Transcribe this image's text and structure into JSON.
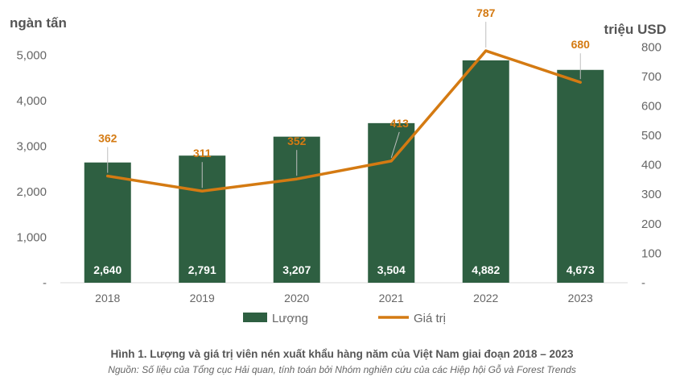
{
  "chart_data": {
    "type": "bar+line",
    "title": "Hình 1. Lượng và giá trị viên nén xuất khẩu hàng năm của Việt Nam giai đoạn 2018 – 2023",
    "source": "Nguồn: Số liệu của Tổng cục Hải quan, tính toán bởi Nhóm nghiên cứu của các Hiệp hội Gỗ và Forest Trends",
    "categories": [
      "2018",
      "2019",
      "2020",
      "2021",
      "2022",
      "2023"
    ],
    "y_left": {
      "label": "ngàn tấn",
      "range": [
        0,
        5500
      ],
      "ticks": [
        {
          "value": 0,
          "label": "-"
        },
        {
          "value": 1000,
          "label": "1,000"
        },
        {
          "value": 2000,
          "label": "2,000"
        },
        {
          "value": 3000,
          "label": "3,000"
        },
        {
          "value": 4000,
          "label": "4,000"
        },
        {
          "value": 5000,
          "label": "5,000"
        }
      ]
    },
    "y_right": {
      "label": "triệu USD",
      "range": [
        0,
        850
      ],
      "ticks": [
        {
          "value": 0,
          "label": "-"
        },
        {
          "value": 100,
          "label": "100"
        },
        {
          "value": 200,
          "label": "200"
        },
        {
          "value": 300,
          "label": "300"
        },
        {
          "value": 400,
          "label": "400"
        },
        {
          "value": 500,
          "label": "500"
        },
        {
          "value": 600,
          "label": "600"
        },
        {
          "value": 700,
          "label": "700"
        },
        {
          "value": 800,
          "label": "800"
        }
      ]
    },
    "series": [
      {
        "name": "Lượng",
        "type": "bar",
        "axis": "left",
        "color": "#2e5f41",
        "values": [
          2640,
          2791,
          3207,
          3504,
          4882,
          4673
        ],
        "labels": [
          "2,640",
          "2,791",
          "3,207",
          "3,504",
          "4,882",
          "4,673"
        ]
      },
      {
        "name": "Giá trị",
        "type": "line",
        "axis": "right",
        "color": "#d47a12",
        "values": [
          362,
          311,
          352,
          413,
          787,
          680
        ],
        "labels": [
          "362",
          "311",
          "352",
          "413",
          "787",
          "680"
        ]
      }
    ],
    "legend_position": "bottom",
    "grid": false
  }
}
